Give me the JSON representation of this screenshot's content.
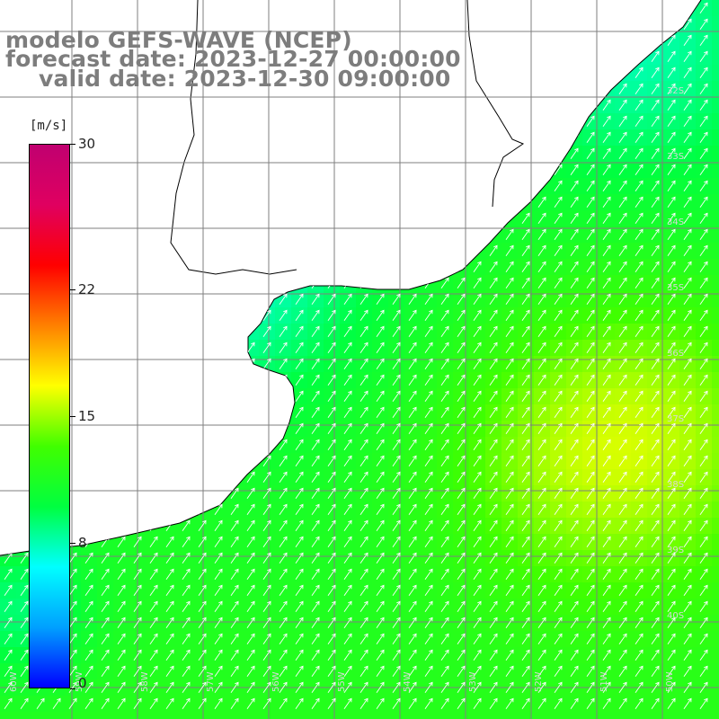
{
  "title": {
    "line1": "modelo GEFS-WAVE (NCEP)",
    "line2": "forecast date: 2023-12-27 00:00:00",
    "line3": "valid date: 2023-12-30 09:00:00"
  },
  "colorbar": {
    "unit": "[m/s]",
    "min": 0,
    "max": 30,
    "ticks": [
      {
        "value": 30,
        "label": "30"
      },
      {
        "value": 22,
        "label": "22"
      },
      {
        "value": 15,
        "label": "15"
      },
      {
        "value": 8,
        "label": "8"
      },
      {
        "value": 0,
        "label": "0"
      }
    ],
    "colors": [
      "#0000ff",
      "#00a0ff",
      "#00ffff",
      "#00ff40",
      "#40ff00",
      "#ffff00",
      "#ff8000",
      "#ff0000",
      "#e00060",
      "#c00070"
    ]
  },
  "map": {
    "variable": "wind speed and direction",
    "region": "southeastern South America coast (Uruguay / Rio de la Plata / Buenos Aires)",
    "arrow_color": "#ffffff",
    "land_color": "#ffffff",
    "coast_color": "#000000",
    "grid_color": "#7f7f7f",
    "wind_direction_deg": 35,
    "latitude_labels": [
      "32S",
      "33S",
      "34S",
      "35S",
      "36S",
      "37S",
      "38S",
      "39S",
      "40S"
    ],
    "longitude_labels": [
      "60W",
      "59W",
      "58W",
      "57W",
      "56W",
      "55W",
      "54W",
      "53W",
      "52W",
      "51W",
      "50W"
    ],
    "typical_speed": 11,
    "max_speed": 15
  }
}
